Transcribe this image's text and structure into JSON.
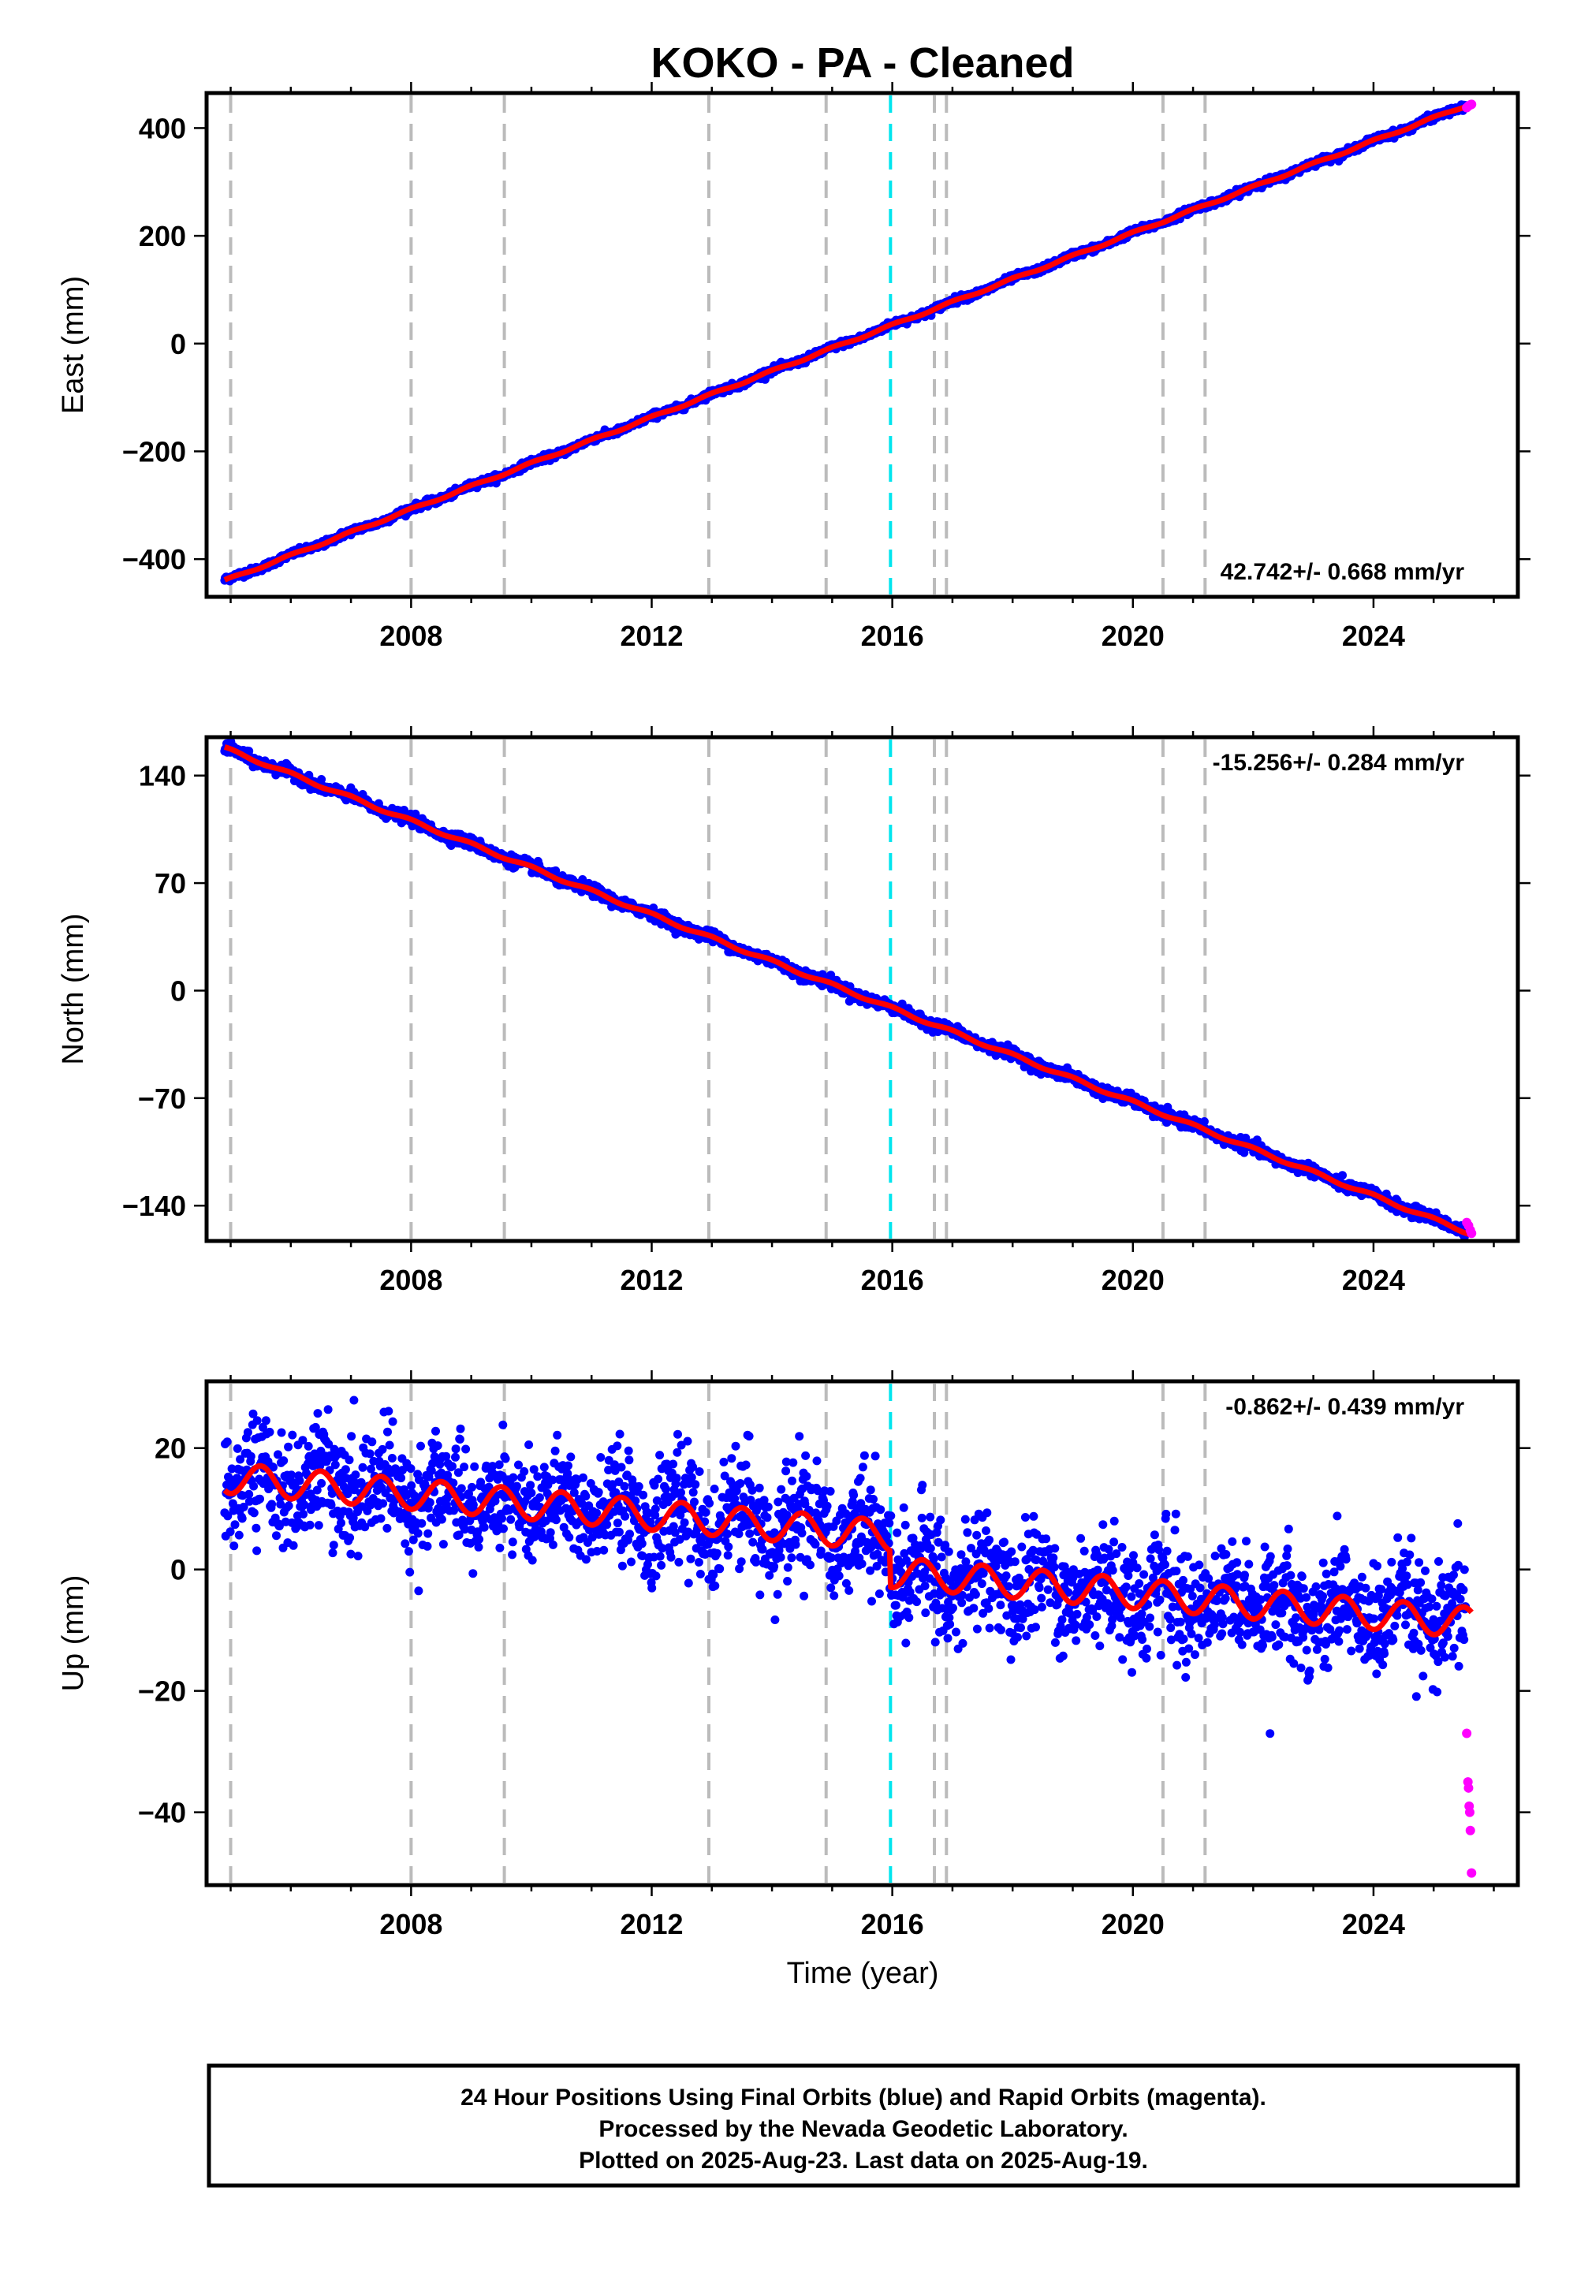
{
  "chart_data": {
    "title": "KOKO  - PA - Cleaned",
    "type": "scatter",
    "xlabel": "Time (year)",
    "xlim": [
      2004.6,
      2026.4
    ],
    "x_ticks": [
      2008,
      2012,
      2016,
      2020,
      2024
    ],
    "offset_lines": [
      {
        "x": 2005.0,
        "kind": "equipment",
        "color": "#bbbbbb"
      },
      {
        "x": 2008.0,
        "kind": "equipment",
        "color": "#bbbbbb"
      },
      {
        "x": 2009.55,
        "kind": "equipment",
        "color": "#bbbbbb"
      },
      {
        "x": 2012.95,
        "kind": "equipment",
        "color": "#bbbbbb"
      },
      {
        "x": 2014.9,
        "kind": "equipment",
        "color": "#bbbbbb"
      },
      {
        "x": 2015.97,
        "kind": "earthquake",
        "color": "#00e5ee"
      },
      {
        "x": 2016.7,
        "kind": "equipment",
        "color": "#bbbbbb"
      },
      {
        "x": 2016.9,
        "kind": "equipment",
        "color": "#bbbbbb"
      },
      {
        "x": 2020.5,
        "kind": "equipment",
        "color": "#bbbbbb"
      },
      {
        "x": 2021.2,
        "kind": "equipment",
        "color": "#bbbbbb"
      }
    ],
    "data_span": [
      2004.9,
      2025.63
    ],
    "colors": {
      "final_orbits": "#0000ff",
      "rapid_orbits": "#ff00ff",
      "model": "#ff0000"
    },
    "panels": [
      {
        "id": "east",
        "ylabel": "East (mm)",
        "ylim": [
          -470,
          465
        ],
        "y_ticks": [
          -400,
          -200,
          0,
          200,
          400
        ],
        "y_tick_labels": [
          "−400",
          "−200",
          "0",
          "200",
          "400"
        ],
        "rate_label": "42.742+/- 0.668 mm/yr",
        "rate_position": "bottom-right",
        "trend": {
          "rate": 42.742,
          "ref_year": 2015.9,
          "ref_value": 30
        },
        "offsets": [],
        "seasonal": {
          "amplitude": 2,
          "phase": 0
        },
        "scatter_sd": 3,
        "rapid_points": [
          {
            "x": 2025.55,
            "y": 438
          },
          {
            "x": 2025.58,
            "y": 441
          },
          {
            "x": 2025.61,
            "y": 443
          },
          {
            "x": 2025.63,
            "y": 444
          }
        ]
      },
      {
        "id": "north",
        "ylabel": "North (mm)",
        "ylim": [
          -163,
          165
        ],
        "y_ticks": [
          -140,
          -70,
          0,
          70,
          140
        ],
        "y_tick_labels": [
          "−140",
          "−70",
          "0",
          "70",
          "140"
        ],
        "rate_label": "-15.256+/- 0.284 mm/yr",
        "rate_position": "top-right",
        "trend": {
          "rate": -15.256,
          "ref_year": 2015.9,
          "ref_value": -10
        },
        "offsets": [],
        "seasonal": {
          "amplitude": 1,
          "phase": 0
        },
        "scatter_sd": 1.8,
        "rapid_points": [
          {
            "x": 2025.55,
            "y": -151
          },
          {
            "x": 2025.58,
            "y": -153
          },
          {
            "x": 2025.61,
            "y": -156
          },
          {
            "x": 2025.63,
            "y": -158
          }
        ]
      },
      {
        "id": "up",
        "ylabel": "Up (mm)",
        "ylim": [
          -52,
          31
        ],
        "y_ticks": [
          -40,
          -20,
          0,
          20
        ],
        "y_tick_labels": [
          "−40",
          "−20",
          "0",
          "20"
        ],
        "rate_label": "-0.862+/- 0.439 mm/yr",
        "rate_position": "top-right",
        "trend": {
          "rate": -0.862,
          "ref_year": 2005.0,
          "ref_value": 15
        },
        "offsets": [
          {
            "x": 2015.97,
            "dy": -6
          }
        ],
        "seasonal": {
          "amplitude": 2.5,
          "phase": 0.5
        },
        "scatter_sd": 4.5,
        "rapid_points": [
          {
            "x": 2025.55,
            "y": -27
          },
          {
            "x": 2025.57,
            "y": -35
          },
          {
            "x": 2025.58,
            "y": -36
          },
          {
            "x": 2025.59,
            "y": -39
          },
          {
            "x": 2025.6,
            "y": -40
          },
          {
            "x": 2025.61,
            "y": -43
          },
          {
            "x": 2025.63,
            "y": -50
          }
        ]
      }
    ]
  },
  "footer": {
    "line1": "24 Hour Positions Using Final Orbits (blue) and Rapid Orbits (magenta).",
    "line2": "Processed by the Nevada Geodetic Laboratory.",
    "line3": "Plotted on 2025-Aug-23. Last data on 2025-Aug-19."
  }
}
